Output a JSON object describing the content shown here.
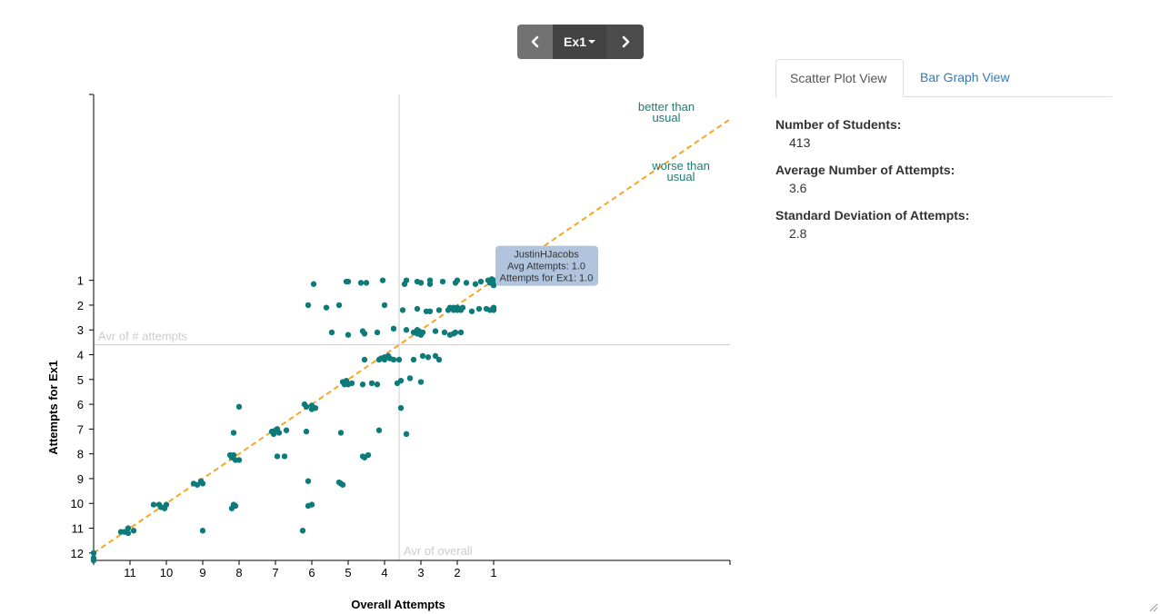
{
  "nav": {
    "exercise_label": "Ex1",
    "prev_icon": "chevron-left-icon",
    "next_icon": "chevron-right-icon"
  },
  "tabs": [
    {
      "label": "Scatter Plot View",
      "active": true
    },
    {
      "label": "Bar Graph View",
      "active": false
    }
  ],
  "stats": [
    {
      "label": "Number of Students:",
      "value": "413"
    },
    {
      "label": "Average Number of Attempts:",
      "value": "3.6"
    },
    {
      "label": "Standard Deviation of Attempts:",
      "value": "2.8"
    }
  ],
  "colors": {
    "points": "#0e7a7a",
    "diagonal": "#f5a623",
    "annotation": "#1f7a74",
    "reference": "#cccccc",
    "tooltip_bg": "#b0c4de"
  },
  "chart_data": {
    "type": "scatter",
    "xlabel": "Overall Attempts",
    "ylabel": "Attempts for Ex1",
    "x_ticks": [
      11,
      10,
      9,
      8,
      7,
      6,
      5,
      4,
      3,
      2,
      1
    ],
    "y_ticks": [
      1,
      2,
      3,
      4,
      5,
      6,
      7,
      8,
      9,
      10,
      11,
      12
    ],
    "xlim": [
      12,
      -5.5
    ],
    "ylim": [
      12.3,
      -6.5
    ],
    "x_axis_reversed": true,
    "y_axis_reversed": true,
    "grid": false,
    "annotations": {
      "better": [
        "better than",
        "usual"
      ],
      "worse": [
        "worse than",
        "usual"
      ],
      "avg_attempts_label": "Avr of # attempts",
      "avg_overall_label": "Avr of overall"
    },
    "avg_overall_x": 3.6,
    "avg_attempts_y": 3.6,
    "tooltip": {
      "name": "JustinHJacobs",
      "line2": "Avg Attempts: 1.0",
      "line3": "Attempts for Ex1: 1.0",
      "x": 1.0,
      "y": 1.0
    },
    "points": [
      [
        1.0,
        1.0
      ],
      [
        1.1,
        1.1
      ],
      [
        1.0,
        1.2
      ],
      [
        0.95,
        1.05
      ],
      [
        1.05,
        0.95
      ],
      [
        1.15,
        1.0
      ],
      [
        1.35,
        1.05
      ],
      [
        1.5,
        1.15
      ],
      [
        1.75,
        1.1
      ],
      [
        2.0,
        1.0
      ],
      [
        2.05,
        1.1
      ],
      [
        2.4,
        1.05
      ],
      [
        2.75,
        1.0
      ],
      [
        2.75,
        1.15
      ],
      [
        3.0,
        1.1
      ],
      [
        3.1,
        1.05
      ],
      [
        3.4,
        1.0
      ],
      [
        3.45,
        1.15
      ],
      [
        4.05,
        1.0
      ],
      [
        4.5,
        1.1
      ],
      [
        4.65,
        1.1
      ],
      [
        5.0,
        1.05
      ],
      [
        5.05,
        1.05
      ],
      [
        5.95,
        1.15
      ],
      [
        1.0,
        2.2
      ],
      [
        1.0,
        2.1
      ],
      [
        1.1,
        2.2
      ],
      [
        1.2,
        2.15
      ],
      [
        1.4,
        2.15
      ],
      [
        1.6,
        2.25
      ],
      [
        1.85,
        2.1
      ],
      [
        1.9,
        2.15
      ],
      [
        1.9,
        2.2
      ],
      [
        2.0,
        2.1
      ],
      [
        2.0,
        2.2
      ],
      [
        2.1,
        2.1
      ],
      [
        2.1,
        2.2
      ],
      [
        2.2,
        2.1
      ],
      [
        2.25,
        2.2
      ],
      [
        2.5,
        2.2
      ],
      [
        2.75,
        2.25
      ],
      [
        2.85,
        2.25
      ],
      [
        3.1,
        2.15
      ],
      [
        3.5,
        2.2
      ],
      [
        4.0,
        2.0
      ],
      [
        5.25,
        2.0
      ],
      [
        5.6,
        2.1
      ],
      [
        6.1,
        2.0
      ],
      [
        1.9,
        3.1
      ],
      [
        2.05,
        3.1
      ],
      [
        2.1,
        3.15
      ],
      [
        2.2,
        3.2
      ],
      [
        2.35,
        3.1
      ],
      [
        2.6,
        3.05
      ],
      [
        2.95,
        3.1
      ],
      [
        3.05,
        3.05
      ],
      [
        3.1,
        3.15
      ],
      [
        3.2,
        3.1
      ],
      [
        3.0,
        3.2
      ],
      [
        3.1,
        3.0
      ],
      [
        3.4,
        3.0
      ],
      [
        3.75,
        2.95
      ],
      [
        4.2,
        3.1
      ],
      [
        4.6,
        3.05
      ],
      [
        4.55,
        3.15
      ],
      [
        5.0,
        3.2
      ],
      [
        5.45,
        3.1
      ],
      [
        2.5,
        4.2
      ],
      [
        2.6,
        4.05
      ],
      [
        2.8,
        4.1
      ],
      [
        2.95,
        4.05
      ],
      [
        3.2,
        4.2
      ],
      [
        3.6,
        4.2
      ],
      [
        3.75,
        4.2
      ],
      [
        3.85,
        4.15
      ],
      [
        4.0,
        4.1
      ],
      [
        4.1,
        4.15
      ],
      [
        4.15,
        4.2
      ],
      [
        4.0,
        4.2
      ],
      [
        3.9,
        4.05
      ],
      [
        4.55,
        4.2
      ],
      [
        3.0,
        5.1
      ],
      [
        3.3,
        4.95
      ],
      [
        3.55,
        5.05
      ],
      [
        3.65,
        5.15
      ],
      [
        4.2,
        5.2
      ],
      [
        4.35,
        5.15
      ],
      [
        4.6,
        5.2
      ],
      [
        4.9,
        5.15
      ],
      [
        5.05,
        5.05
      ],
      [
        5.1,
        5.2
      ],
      [
        5.15,
        5.1
      ],
      [
        5.0,
        5.2
      ],
      [
        3.55,
        6.15
      ],
      [
        5.9,
        6.15
      ],
      [
        6.0,
        6.05
      ],
      [
        6.2,
        6.0
      ],
      [
        6.15,
        6.1
      ],
      [
        6.0,
        6.2
      ],
      [
        8.0,
        6.1
      ],
      [
        3.4,
        7.2
      ],
      [
        4.15,
        7.05
      ],
      [
        5.2,
        7.15
      ],
      [
        6.15,
        7.1
      ],
      [
        6.7,
        7.05
      ],
      [
        6.9,
        7.15
      ],
      [
        7.0,
        7.05
      ],
      [
        7.1,
        7.1
      ],
      [
        7.05,
        7.2
      ],
      [
        6.95,
        7.0
      ],
      [
        8.15,
        7.15
      ],
      [
        4.45,
        8.05
      ],
      [
        4.6,
        8.1
      ],
      [
        4.55,
        8.15
      ],
      [
        6.75,
        8.1
      ],
      [
        6.95,
        8.1
      ],
      [
        8.0,
        8.25
      ],
      [
        8.1,
        8.25
      ],
      [
        8.2,
        8.15
      ],
      [
        8.15,
        8.05
      ],
      [
        8.25,
        8.05
      ],
      [
        5.2,
        9.2
      ],
      [
        5.25,
        9.15
      ],
      [
        5.15,
        9.25
      ],
      [
        6.1,
        9.1
      ],
      [
        9.0,
        9.2
      ],
      [
        9.05,
        9.1
      ],
      [
        9.15,
        9.25
      ],
      [
        9.25,
        9.2
      ],
      [
        6.0,
        10.05
      ],
      [
        6.1,
        10.1
      ],
      [
        8.1,
        10.1
      ],
      [
        8.15,
        10.05
      ],
      [
        8.2,
        10.2
      ],
      [
        10.0,
        10.05
      ],
      [
        10.2,
        10.05
      ],
      [
        10.35,
        10.05
      ],
      [
        10.05,
        10.2
      ],
      [
        10.15,
        10.15
      ],
      [
        6.25,
        11.1
      ],
      [
        9.0,
        11.1
      ],
      [
        10.9,
        11.1
      ],
      [
        11.05,
        11.0
      ],
      [
        11.15,
        11.15
      ],
      [
        11.05,
        11.2
      ],
      [
        11.25,
        11.15
      ],
      [
        12.0,
        12.0
      ],
      [
        12.0,
        12.2
      ],
      [
        12.0,
        12.3
      ]
    ]
  }
}
